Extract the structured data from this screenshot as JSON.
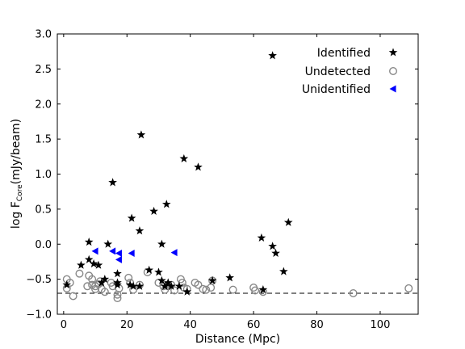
{
  "chart_data": {
    "type": "scatter",
    "xlabel": "Distance (Mpc)",
    "ylabel_main": "log F",
    "ylabel_sub": "Core",
    "ylabel_unit": "(mJy/beam)",
    "xlim": [
      -2,
      112
    ],
    "ylim": [
      -1.0,
      3.0
    ],
    "xticks": [
      0,
      20,
      40,
      60,
      80,
      100
    ],
    "yticks": [
      -1.0,
      -0.5,
      0.0,
      0.5,
      1.0,
      1.5,
      2.0,
      2.5,
      3.0
    ],
    "xtick_labels": [
      "0",
      "20",
      "40",
      "60",
      "80",
      "100"
    ],
    "ytick_labels": [
      "−1.0",
      "−0.5",
      "0.0",
      "0.5",
      "1.0",
      "1.5",
      "2.0",
      "2.5",
      "3.0"
    ],
    "grid": false,
    "legend_position": "top-right",
    "reference_line": {
      "style": "dashed",
      "color": "#000000",
      "x": [
        -2,
        112
      ],
      "y": [
        -0.7,
        -0.7
      ]
    },
    "series": [
      {
        "name": "Identified",
        "marker": "star",
        "color": "#000000",
        "points": [
          [
            1,
            -0.58
          ],
          [
            5.5,
            -0.3
          ],
          [
            8,
            0.03
          ],
          [
            8,
            -0.22
          ],
          [
            9.5,
            -0.28
          ],
          [
            11,
            -0.3
          ],
          [
            12,
            -0.55
          ],
          [
            13,
            -0.5
          ],
          [
            14,
            0.0
          ],
          [
            15.5,
            0.88
          ],
          [
            17,
            -0.42
          ],
          [
            17,
            -0.55
          ],
          [
            17,
            -0.58
          ],
          [
            21.5,
            0.37
          ],
          [
            21,
            -0.58
          ],
          [
            22,
            -0.6
          ],
          [
            24,
            0.19
          ],
          [
            24,
            -0.6
          ],
          [
            24.5,
            1.56
          ],
          [
            27,
            -0.37
          ],
          [
            28.5,
            0.47
          ],
          [
            30,
            -0.4
          ],
          [
            31,
            -0.52
          ],
          [
            31,
            0.0
          ],
          [
            32,
            -0.6
          ],
          [
            32.5,
            0.57
          ],
          [
            33,
            -0.55
          ],
          [
            34,
            -0.6
          ],
          [
            36.5,
            -0.6
          ],
          [
            38,
            1.22
          ],
          [
            39,
            -0.68
          ],
          [
            42.5,
            1.1
          ],
          [
            47,
            -0.52
          ],
          [
            52.5,
            -0.48
          ],
          [
            62.5,
            0.09
          ],
          [
            63,
            -0.65
          ],
          [
            66,
            2.69
          ],
          [
            66,
            -0.03
          ],
          [
            67,
            -0.13
          ],
          [
            69.5,
            -0.39
          ],
          [
            71,
            0.31
          ]
        ]
      },
      {
        "name": "Undetected",
        "marker": "open-circle",
        "color": "#888888",
        "points": [
          [
            1,
            -0.63
          ],
          [
            1,
            -0.5
          ],
          [
            2,
            -0.55
          ],
          [
            3,
            -0.74
          ],
          [
            5,
            -0.42
          ],
          [
            7.5,
            -0.6
          ],
          [
            8,
            -0.45
          ],
          [
            9,
            -0.5
          ],
          [
            9,
            -0.58
          ],
          [
            10,
            -0.6
          ],
          [
            10,
            -0.64
          ],
          [
            11,
            -0.57
          ],
          [
            11.5,
            -0.53
          ],
          [
            12,
            -0.64
          ],
          [
            13,
            -0.68
          ],
          [
            15,
            -0.55
          ],
          [
            15.5,
            -0.6
          ],
          [
            17,
            -0.72
          ],
          [
            17,
            -0.77
          ],
          [
            17.5,
            -0.63
          ],
          [
            20.5,
            -0.48
          ],
          [
            21,
            -0.55
          ],
          [
            22,
            -0.65
          ],
          [
            24,
            -0.58
          ],
          [
            26.5,
            -0.4
          ],
          [
            30,
            -0.55
          ],
          [
            31.5,
            -0.6
          ],
          [
            32,
            -0.65
          ],
          [
            33,
            -0.6
          ],
          [
            34,
            -0.58
          ],
          [
            35,
            -0.66
          ],
          [
            37,
            -0.5
          ],
          [
            37.5,
            -0.55
          ],
          [
            38,
            -0.62
          ],
          [
            39,
            -0.64
          ],
          [
            41.5,
            -0.55
          ],
          [
            42.5,
            -0.58
          ],
          [
            44,
            -0.64
          ],
          [
            45,
            -0.65
          ],
          [
            46.5,
            -0.62
          ],
          [
            47,
            -0.52
          ],
          [
            53.5,
            -0.65
          ],
          [
            60,
            -0.62
          ],
          [
            60.5,
            -0.66
          ],
          [
            63,
            -0.68
          ],
          [
            91.5,
            -0.7
          ],
          [
            109,
            -0.63
          ]
        ]
      },
      {
        "name": "Unidentified",
        "marker": "triangle-left",
        "color": "#0000ff",
        "points": [
          [
            10,
            -0.1
          ],
          [
            15.5,
            -0.1
          ],
          [
            17.5,
            -0.13
          ],
          [
            17.5,
            -0.22
          ],
          [
            21.5,
            -0.13
          ],
          [
            35,
            -0.12
          ]
        ]
      }
    ]
  }
}
